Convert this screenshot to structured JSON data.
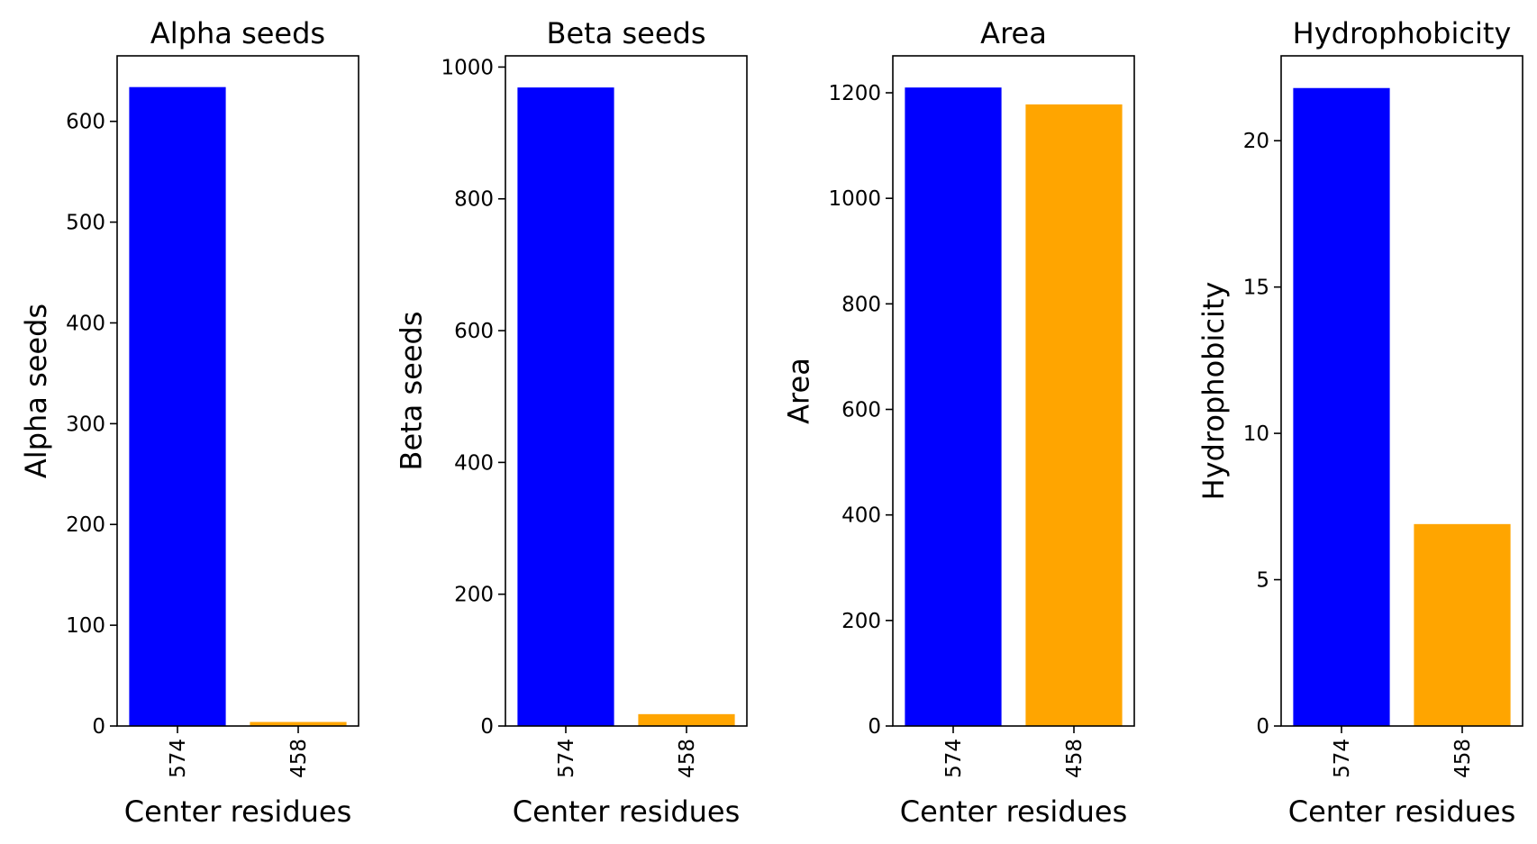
{
  "chart_data": [
    {
      "type": "bar",
      "title": "Alpha seeds",
      "xlabel": "Center residues",
      "ylabel": "Alpha seeds",
      "categories": [
        "574",
        "458"
      ],
      "values": [
        634,
        4
      ],
      "colors": [
        "#0000ff",
        "#ffa500"
      ],
      "ylim": [
        0,
        665
      ],
      "yticks": [
        0,
        100,
        200,
        300,
        400,
        500,
        600
      ],
      "grid": false
    },
    {
      "type": "bar",
      "title": "Beta seeds",
      "xlabel": "Center residues",
      "ylabel": "Beta seeds",
      "categories": [
        "574",
        "458"
      ],
      "values": [
        969,
        18
      ],
      "colors": [
        "#0000ff",
        "#ffa500"
      ],
      "ylim": [
        0,
        1017
      ],
      "yticks": [
        0,
        200,
        400,
        600,
        800,
        1000
      ],
      "grid": false
    },
    {
      "type": "bar",
      "title": "Area",
      "xlabel": "Center residues",
      "ylabel": "Area",
      "categories": [
        "574",
        "458"
      ],
      "values": [
        1210,
        1178
      ],
      "colors": [
        "#0000ff",
        "#ffa500"
      ],
      "ylim": [
        0,
        1270
      ],
      "yticks": [
        0,
        200,
        400,
        600,
        800,
        1000,
        1200
      ],
      "grid": false
    },
    {
      "type": "bar",
      "title": "Hydrophobicity",
      "xlabel": "Center residues",
      "ylabel": "Hydrophobicity",
      "categories": [
        "574",
        "458"
      ],
      "values": [
        21.8,
        6.9
      ],
      "colors": [
        "#0000ff",
        "#ffa500"
      ],
      "ylim": [
        0,
        22.9
      ],
      "yticks": [
        0,
        5,
        10,
        15,
        20
      ],
      "grid": false
    }
  ]
}
